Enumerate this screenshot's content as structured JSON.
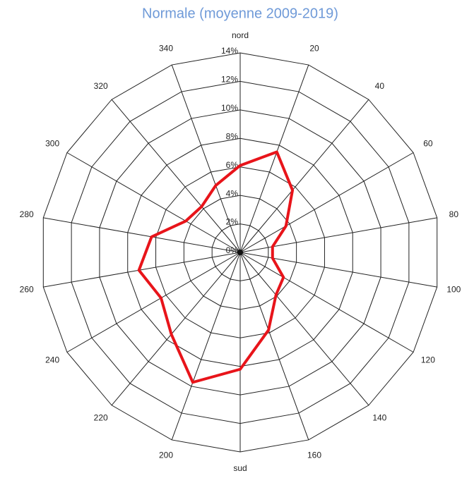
{
  "chart_data": {
    "type": "radar",
    "title": "Normale (moyenne 2009-2019)",
    "categories": [
      "nord",
      "20",
      "40",
      "60",
      "80",
      "100",
      "120",
      "140",
      "160",
      "sud",
      "200",
      "220",
      "240",
      "260",
      "280",
      "300",
      "320",
      "340"
    ],
    "values": [
      6.1,
      7.5,
      5.7,
      3.7,
      2.3,
      2.3,
      3.5,
      3.9,
      5.8,
      8.2,
      9.7,
      7.5,
      6.4,
      7.2,
      6.3,
      4.4,
      4.2,
      5.0
    ],
    "color": "#e8141a",
    "ylim": [
      0,
      14
    ],
    "yticks": [
      {
        "value": 0,
        "label": "0%"
      },
      {
        "value": 2,
        "label": "2%"
      },
      {
        "value": 4,
        "label": "4%"
      },
      {
        "value": 6,
        "label": "6%"
      },
      {
        "value": 8,
        "label": "8%"
      },
      {
        "value": 10,
        "label": "10%"
      },
      {
        "value": 12,
        "label": "12%"
      },
      {
        "value": 14,
        "label": "14%"
      }
    ],
    "grid": true
  }
}
